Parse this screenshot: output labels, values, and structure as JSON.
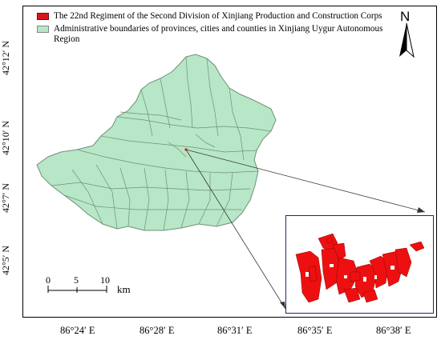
{
  "legend": {
    "items": [
      {
        "label": "The 22nd Regiment of the Second Division of Xinjiang Production and Construction Corps",
        "color": "#d8151b"
      },
      {
        "label": "Administrative boundaries of provinces, cities and counties in Xinjiang Uygur Autonomous Region",
        "color": "#b7e7c6"
      }
    ]
  },
  "north_arrow": {
    "label": "N"
  },
  "latitude_labels": [
    "42°12′ N",
    "42°10′ N",
    "42°7′ N",
    "42°5′ N"
  ],
  "longitude_labels": [
    "86°24′ E",
    "86°28′ E",
    "86°31′ E",
    "86°35′ E",
    "86°38′ E"
  ],
  "scale_bar": {
    "ticks": [
      "0",
      "5",
      "10"
    ],
    "unit": "km"
  },
  "colors": {
    "region_fill": "#b7e7c6",
    "region_stroke": "#6f8f79",
    "regiment_fill": "#ee1010",
    "inset_border": "#1f2a5c"
  }
}
